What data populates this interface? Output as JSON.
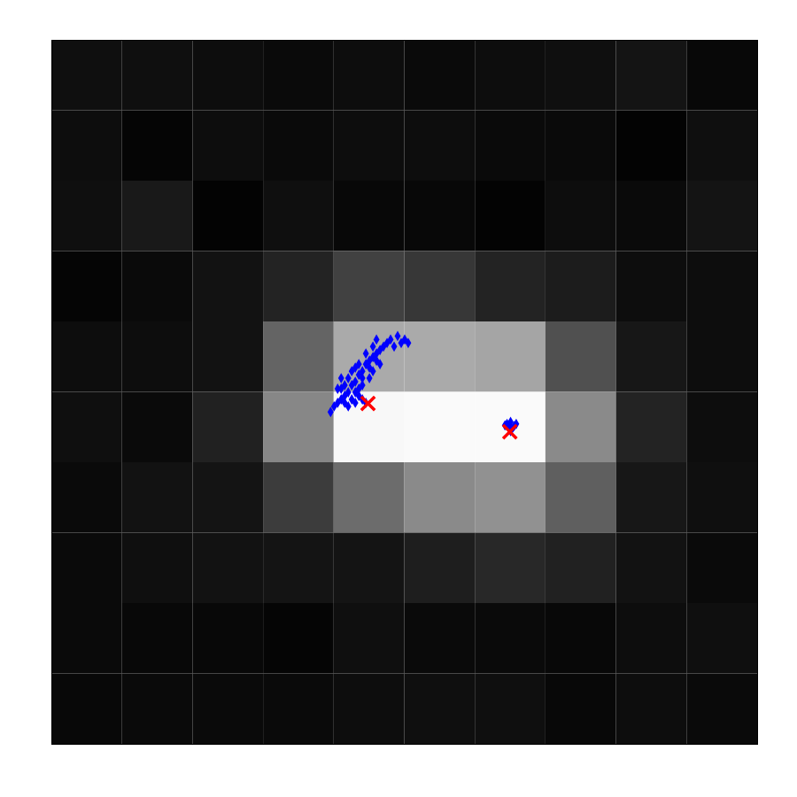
{
  "chart_data": {
    "type": "heatmap",
    "xlim": [
      0,
      10
    ],
    "ylim": [
      0,
      10
    ],
    "tick_labels": false,
    "grid": false,
    "zlim": [
      0,
      255
    ],
    "cells": [
      [
        15,
        15,
        13,
        10,
        13,
        10,
        13,
        15,
        20,
        8
      ],
      [
        13,
        5,
        13,
        10,
        13,
        13,
        10,
        10,
        3,
        15
      ],
      [
        15,
        25,
        3,
        15,
        8,
        8,
        3,
        13,
        10,
        20
      ],
      [
        5,
        10,
        18,
        35,
        65,
        55,
        35,
        28,
        13,
        13
      ],
      [
        13,
        13,
        18,
        100,
        170,
        170,
        165,
        80,
        23,
        13
      ],
      [
        15,
        10,
        33,
        135,
        248,
        250,
        250,
        138,
        35,
        13
      ],
      [
        10,
        18,
        20,
        60,
        108,
        138,
        145,
        95,
        23,
        15
      ],
      [
        10,
        15,
        18,
        20,
        20,
        30,
        40,
        33,
        18,
        10
      ],
      [
        10,
        8,
        8,
        5,
        15,
        10,
        10,
        8,
        13,
        15
      ],
      [
        8,
        10,
        10,
        10,
        13,
        15,
        15,
        8,
        13,
        10
      ]
    ],
    "series": [
      {
        "type": "scatter",
        "color": "#0000ff",
        "marker": "diamond",
        "x": [
          4.35,
          4.4,
          4.3,
          4.45,
          4.5,
          4.55,
          4.6,
          4.65,
          4.7,
          4.75,
          4.8,
          4.9,
          5,
          5.05,
          4.95,
          4.85,
          4.6,
          4.25,
          4.2,
          4.15,
          4.1,
          4.05,
          4,
          3.95,
          4.3,
          4.35,
          4.4,
          4.45,
          4.3,
          4.2,
          4.15,
          4.1,
          4.25,
          4.35,
          4.45,
          4.55,
          4.6,
          4.4,
          4.5,
          4.55,
          4.2,
          4.1,
          4.05,
          4.35,
          4.25,
          4.15,
          4.5,
          4.4,
          4.3,
          4.65,
          6.45,
          6.5,
          6.55,
          6.48,
          6.52,
          6.42,
          6.58,
          6.5
        ],
        "y": [
          4.75,
          4.7,
          4.85,
          4.6,
          4.55,
          4.5,
          4.45,
          4.4,
          4.35,
          4.3,
          4.25,
          4.2,
          4.25,
          4.3,
          4.3,
          4.35,
          4.55,
          4.9,
          5,
          5.05,
          5.1,
          5.15,
          5.2,
          5.28,
          5,
          5.05,
          5.1,
          5.15,
          5.15,
          5.2,
          4.9,
          4.95,
          4.7,
          4.6,
          4.45,
          4.35,
          4.25,
          4.9,
          4.8,
          4.7,
          4.8,
          4.8,
          4.95,
          4.95,
          5.1,
          5.15,
          4.65,
          4.8,
          4.65,
          4.6,
          5.45,
          5.42,
          5.48,
          5.5,
          5.52,
          5.47,
          5.45,
          5.55
        ]
      },
      {
        "type": "scatter",
        "color": "#ff0000",
        "marker": "x",
        "x": [
          4.48,
          6.49
        ],
        "y": [
          5.16,
          5.56
        ]
      }
    ]
  }
}
